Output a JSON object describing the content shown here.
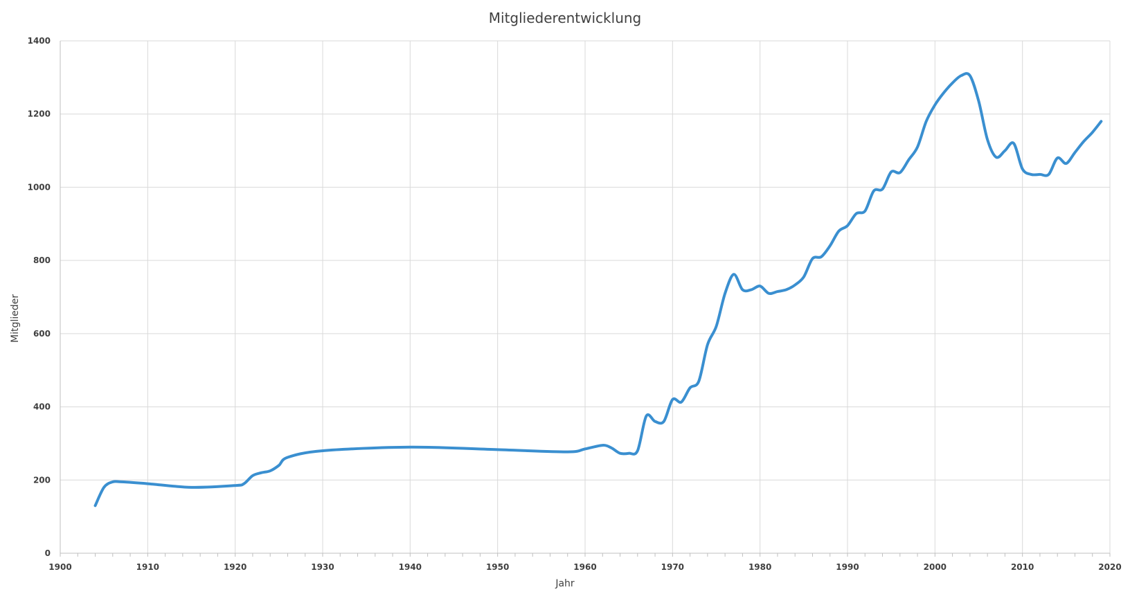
{
  "chart_data": {
    "type": "line",
    "title": "Mitgliederentwicklung",
    "xlabel": "Jahr",
    "ylabel": "Mitglieder",
    "xlim": [
      1900,
      2020
    ],
    "ylim": [
      0,
      1400
    ],
    "x_ticks": [
      1900,
      1910,
      1920,
      1930,
      1940,
      1950,
      1960,
      1970,
      1980,
      1990,
      2000,
      2010,
      2020
    ],
    "y_ticks": [
      0,
      200,
      400,
      600,
      800,
      1000,
      1200,
      1400
    ],
    "grid": true,
    "legend": "none",
    "line_color": "#3a8fd0",
    "series": [
      {
        "x": [
          1904,
          1905,
          1906,
          1907,
          1910,
          1915,
          1920,
          1921,
          1922,
          1923,
          1924,
          1925,
          1926,
          1930,
          1940,
          1950,
          1958,
          1960,
          1962,
          1963,
          1964,
          1965,
          1966,
          1967,
          1968,
          1969,
          1970,
          1971,
          1972,
          1973,
          1974,
          1975,
          1976,
          1977,
          1978,
          1979,
          1980,
          1981,
          1982,
          1983,
          1984,
          1985,
          1986,
          1987,
          1988,
          1989,
          1990,
          1991,
          1992,
          1993,
          1994,
          1995,
          1996,
          1997,
          1998,
          1999,
          2000,
          2001,
          2002,
          2003,
          2004,
          2005,
          2006,
          2007,
          2008,
          2009,
          2010,
          2011,
          2012,
          2013,
          2014,
          2015,
          2016,
          2017,
          2018,
          2019
        ],
        "values": [
          130,
          180,
          195,
          195,
          190,
          180,
          185,
          190,
          212,
          220,
          225,
          240,
          262,
          280,
          290,
          283,
          277,
          285,
          295,
          288,
          273,
          273,
          280,
          375,
          360,
          360,
          420,
          413,
          452,
          470,
          570,
          620,
          710,
          762,
          720,
          720,
          730,
          710,
          715,
          720,
          733,
          755,
          805,
          810,
          840,
          880,
          895,
          928,
          935,
          990,
          995,
          1042,
          1040,
          1075,
          1110,
          1180,
          1225,
          1258,
          1285,
          1305,
          1305,
          1235,
          1130,
          1082,
          1100,
          1120,
          1050,
          1035,
          1035,
          1035,
          1080,
          1065,
          1095,
          1125,
          1150,
          1180
        ]
      }
    ]
  }
}
